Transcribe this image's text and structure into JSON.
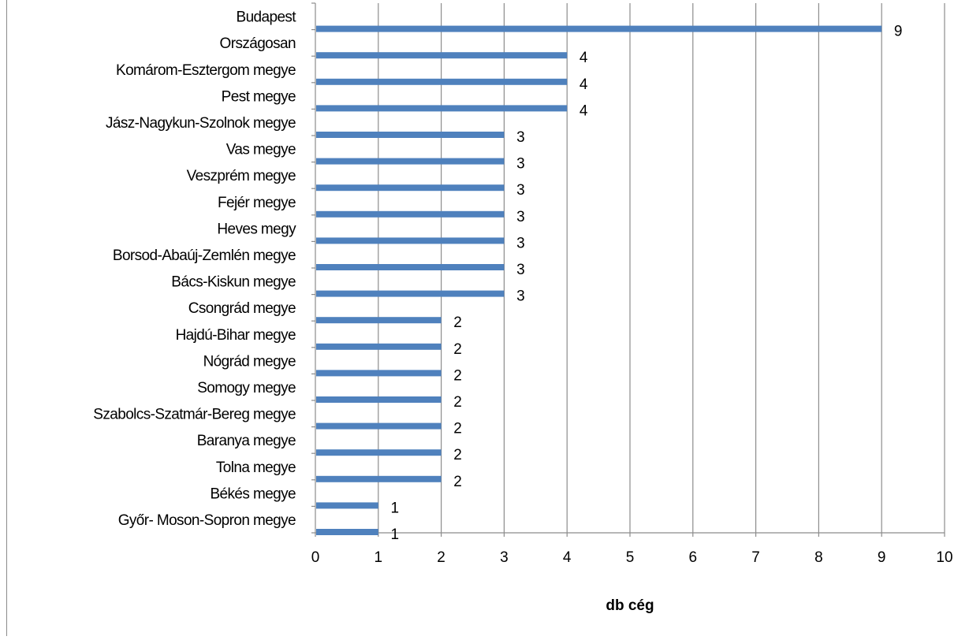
{
  "chart_data": {
    "type": "bar",
    "orientation": "horizontal",
    "title": "",
    "xlabel": "db cég",
    "ylabel": "",
    "xlim": [
      0,
      10
    ],
    "x_ticks": [
      "0",
      "1",
      "2",
      "3",
      "4",
      "5",
      "6",
      "7",
      "8",
      "9",
      "10"
    ],
    "grid": "vertical",
    "legend": "none",
    "bar_color": "#4f81bd",
    "categories": [
      "Budapest",
      "Országosan",
      "Komárom-Esztergom megye",
      "Pest megye",
      "Jász-Nagykun-Szolnok megye",
      "Vas megye",
      "Veszprém megye",
      "Fejér megye",
      "Heves megy",
      "Borsod-Abaúj-Zemlén megye",
      "Bács-Kiskun megye",
      "Csongrád megye",
      "Hajdú-Bihar megye",
      "Nógrád megye",
      "Somogy megye",
      "Szabolcs-Szatmár-Bereg megye",
      "Baranya megye",
      "Tolna megye",
      "Békés megye",
      "Győr- Moson-Sopron megye"
    ],
    "values": [
      9,
      4,
      4,
      4,
      3,
      3,
      3,
      3,
      3,
      3,
      3,
      2,
      2,
      2,
      2,
      2,
      2,
      2,
      1,
      1
    ],
    "data_labels": [
      "9",
      "4",
      "4",
      "4",
      "3",
      "3",
      "3",
      "3",
      "3",
      "3",
      "3",
      "2",
      "2",
      "2",
      "2",
      "2",
      "2",
      "2",
      "1",
      "1"
    ]
  }
}
